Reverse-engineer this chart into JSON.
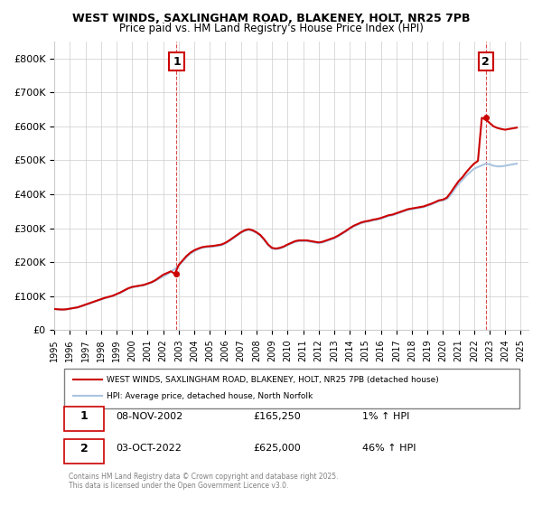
{
  "title_line1": "WEST WINDS, SAXLINGHAM ROAD, BLAKENEY, HOLT, NR25 7PB",
  "title_line2": "Price paid vs. HM Land Registry's House Price Index (HPI)",
  "ylabel": "",
  "xlabel": "",
  "background_color": "#ffffff",
  "grid_color": "#cccccc",
  "hpi_color": "#aac4e0",
  "price_color": "#cc0000",
  "dashed_color": "#cc0000",
  "xmin": 1995.0,
  "xmax": 2025.5,
  "ymin": 0,
  "ymax": 850000,
  "yticks": [
    0,
    100000,
    200000,
    300000,
    400000,
    500000,
    600000,
    700000,
    800000
  ],
  "ytick_labels": [
    "£0",
    "£100K",
    "£200K",
    "£300K",
    "£400K",
    "£500K",
    "£600K",
    "£700K",
    "£800K"
  ],
  "xticks": [
    1995,
    1996,
    1997,
    1998,
    1999,
    2000,
    2001,
    2002,
    2003,
    2004,
    2005,
    2006,
    2007,
    2008,
    2009,
    2010,
    2011,
    2012,
    2013,
    2014,
    2015,
    2016,
    2017,
    2018,
    2019,
    2020,
    2021,
    2022,
    2023,
    2024,
    2025
  ],
  "sale1_x": 2002.86,
  "sale1_y": 165250,
  "sale1_label": "1",
  "sale2_x": 2022.75,
  "sale2_y": 625000,
  "sale2_label": "2",
  "legend_line1": "WEST WINDS, SAXLINGHAM ROAD, BLAKENEY, HOLT, NR25 7PB (detached house)",
  "legend_line2": "HPI: Average price, detached house, North Norfolk",
  "ann1_label": "1",
  "ann1_date": "08-NOV-2002",
  "ann1_price": "£165,250",
  "ann1_hpi": "1% ↑ HPI",
  "ann2_label": "2",
  "ann2_date": "03-OCT-2022",
  "ann2_price": "£625,000",
  "ann2_hpi": "46% ↑ HPI",
  "footer": "Contains HM Land Registry data © Crown copyright and database right 2025.\nThis data is licensed under the Open Government Licence v3.0.",
  "hpi_data_x": [
    1995.0,
    1995.25,
    1995.5,
    1995.75,
    1996.0,
    1996.25,
    1996.5,
    1996.75,
    1997.0,
    1997.25,
    1997.5,
    1997.75,
    1998.0,
    1998.25,
    1998.5,
    1998.75,
    1999.0,
    1999.25,
    1999.5,
    1999.75,
    2000.0,
    2000.25,
    2000.5,
    2000.75,
    2001.0,
    2001.25,
    2001.5,
    2001.75,
    2002.0,
    2002.25,
    2002.5,
    2002.75,
    2003.0,
    2003.25,
    2003.5,
    2003.75,
    2004.0,
    2004.25,
    2004.5,
    2004.75,
    2005.0,
    2005.25,
    2005.5,
    2005.75,
    2006.0,
    2006.25,
    2006.5,
    2006.75,
    2007.0,
    2007.25,
    2007.5,
    2007.75,
    2008.0,
    2008.25,
    2008.5,
    2008.75,
    2009.0,
    2009.25,
    2009.5,
    2009.75,
    2010.0,
    2010.25,
    2010.5,
    2010.75,
    2011.0,
    2011.25,
    2011.5,
    2011.75,
    2012.0,
    2012.25,
    2012.5,
    2012.75,
    2013.0,
    2013.25,
    2013.5,
    2013.75,
    2014.0,
    2014.25,
    2014.5,
    2014.75,
    2015.0,
    2015.25,
    2015.5,
    2015.75,
    2016.0,
    2016.25,
    2016.5,
    2016.75,
    2017.0,
    2017.25,
    2017.5,
    2017.75,
    2018.0,
    2018.25,
    2018.5,
    2018.75,
    2019.0,
    2019.25,
    2019.5,
    2019.75,
    2020.0,
    2020.25,
    2020.5,
    2020.75,
    2021.0,
    2021.25,
    2021.5,
    2021.75,
    2022.0,
    2022.25,
    2022.5,
    2022.75,
    2023.0,
    2023.25,
    2023.5,
    2023.75,
    2024.0,
    2024.25,
    2024.5,
    2024.75
  ],
  "hpi_data_y": [
    62000,
    61000,
    60000,
    61000,
    63000,
    65000,
    67000,
    70000,
    74000,
    78000,
    82000,
    86000,
    90000,
    94000,
    97000,
    100000,
    105000,
    110000,
    116000,
    122000,
    126000,
    128000,
    130000,
    132000,
    136000,
    140000,
    145000,
    152000,
    158000,
    164000,
    172000,
    180000,
    190000,
    202000,
    215000,
    225000,
    232000,
    238000,
    242000,
    244000,
    245000,
    246000,
    248000,
    250000,
    255000,
    262000,
    270000,
    278000,
    286000,
    292000,
    295000,
    292000,
    286000,
    278000,
    265000,
    250000,
    240000,
    238000,
    240000,
    244000,
    250000,
    255000,
    260000,
    262000,
    262000,
    262000,
    260000,
    258000,
    256000,
    258000,
    262000,
    266000,
    270000,
    276000,
    283000,
    290000,
    298000,
    305000,
    310000,
    315000,
    318000,
    320000,
    323000,
    325000,
    328000,
    332000,
    336000,
    338000,
    342000,
    346000,
    350000,
    354000,
    356000,
    358000,
    360000,
    362000,
    366000,
    370000,
    375000,
    380000,
    382000,
    386000,
    398000,
    415000,
    430000,
    442000,
    455000,
    465000,
    475000,
    480000,
    485000,
    490000,
    488000,
    484000,
    482000,
    482000,
    484000,
    486000,
    488000,
    490000
  ],
  "price_data_x": [
    1995.0,
    1995.25,
    1995.5,
    1995.75,
    1996.0,
    1996.25,
    1996.5,
    1996.75,
    1997.0,
    1997.25,
    1997.5,
    1997.75,
    1998.0,
    1998.25,
    1998.5,
    1998.75,
    1999.0,
    1999.25,
    1999.5,
    1999.75,
    2000.0,
    2000.25,
    2000.5,
    2000.75,
    2001.0,
    2001.25,
    2001.5,
    2001.75,
    2002.0,
    2002.25,
    2002.5,
    2002.75,
    2003.0,
    2003.25,
    2003.5,
    2003.75,
    2004.0,
    2004.25,
    2004.5,
    2004.75,
    2005.0,
    2005.25,
    2005.5,
    2005.75,
    2006.0,
    2006.25,
    2006.5,
    2006.75,
    2007.0,
    2007.25,
    2007.5,
    2007.75,
    2008.0,
    2008.25,
    2008.5,
    2008.75,
    2009.0,
    2009.25,
    2009.5,
    2009.75,
    2010.0,
    2010.25,
    2010.5,
    2010.75,
    2011.0,
    2011.25,
    2011.5,
    2011.75,
    2012.0,
    2012.25,
    2012.5,
    2012.75,
    2013.0,
    2013.25,
    2013.5,
    2013.75,
    2014.0,
    2014.25,
    2014.5,
    2014.75,
    2015.0,
    2015.25,
    2015.5,
    2015.75,
    2016.0,
    2016.25,
    2016.5,
    2016.75,
    2017.0,
    2017.25,
    2017.5,
    2017.75,
    2018.0,
    2018.25,
    2018.5,
    2018.75,
    2019.0,
    2019.25,
    2019.5,
    2019.75,
    2020.0,
    2020.25,
    2020.5,
    2020.75,
    2021.0,
    2021.25,
    2021.5,
    2021.75,
    2022.0,
    2022.25,
    2022.5,
    2022.75,
    2023.0,
    2023.25,
    2023.5,
    2023.75,
    2024.0,
    2024.25,
    2024.5,
    2024.75
  ],
  "price_data_y": [
    62000,
    61000,
    60500,
    61000,
    63000,
    65000,
    67000,
    71000,
    75000,
    79000,
    83000,
    87000,
    91000,
    95000,
    98000,
    101000,
    106000,
    111000,
    117000,
    123000,
    127000,
    129000,
    131000,
    133000,
    137000,
    141000,
    147000,
    155000,
    163000,
    168000,
    173000,
    165250,
    192000,
    205000,
    218000,
    228000,
    235000,
    240000,
    244000,
    246000,
    247000,
    248000,
    250000,
    252000,
    257000,
    264000,
    272000,
    280000,
    288000,
    294000,
    297000,
    294000,
    288000,
    280000,
    267000,
    252000,
    242000,
    240000,
    242000,
    246000,
    252000,
    257000,
    262000,
    264000,
    264000,
    264000,
    262000,
    260000,
    258000,
    260000,
    264000,
    268000,
    272000,
    278000,
    285000,
    292000,
    300000,
    307000,
    312000,
    317000,
    320000,
    322000,
    325000,
    327000,
    330000,
    334000,
    338000,
    340000,
    344000,
    348000,
    352000,
    356000,
    358000,
    360000,
    362000,
    364000,
    368000,
    372000,
    377000,
    382000,
    384000,
    390000,
    405000,
    422000,
    438000,
    450000,
    465000,
    478000,
    490000,
    498000,
    625000,
    620000,
    610000,
    600000,
    595000,
    592000,
    590000,
    592000,
    594000,
    596000
  ]
}
